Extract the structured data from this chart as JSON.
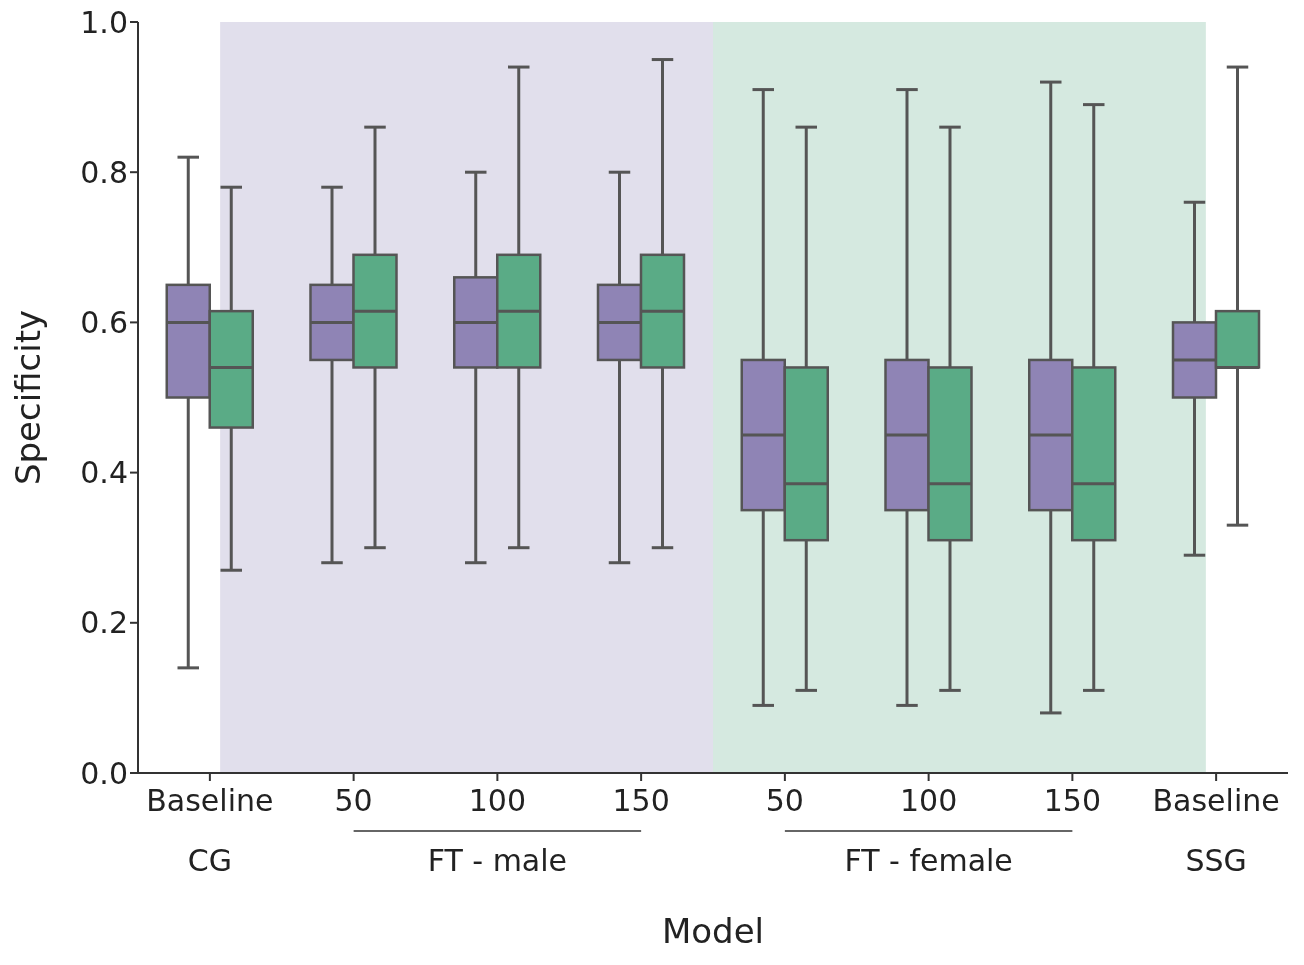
{
  "chart_data": {
    "type": "box",
    "xlabel": "Model",
    "ylabel": "Specificity",
    "categories": [
      "Baseline",
      "50",
      "100",
      "150",
      "50",
      "100",
      "150",
      "Baseline"
    ],
    "annotations": [
      "CG",
      "FT - male",
      "FT - female",
      "SSG"
    ],
    "series": [
      {
        "color": "#8f84b5",
        "boxes": [
          {
            "low": 0.14,
            "q1": 0.5,
            "median": 0.6,
            "q3": 0.65,
            "high": 0.82
          },
          {
            "low": 0.28,
            "q1": 0.55,
            "median": 0.6,
            "q3": 0.65,
            "high": 0.78
          },
          {
            "low": 0.28,
            "q1": 0.54,
            "median": 0.6,
            "q3": 0.66,
            "high": 0.8
          },
          {
            "low": 0.28,
            "q1": 0.55,
            "median": 0.6,
            "q3": 0.65,
            "high": 0.8
          },
          {
            "low": 0.09,
            "q1": 0.35,
            "median": 0.45,
            "q3": 0.55,
            "high": 0.91
          },
          {
            "low": 0.09,
            "q1": 0.35,
            "median": 0.45,
            "q3": 0.55,
            "high": 0.91
          },
          {
            "low": 0.08,
            "q1": 0.35,
            "median": 0.45,
            "q3": 0.55,
            "high": 0.92
          },
          {
            "low": 0.29,
            "q1": 0.5,
            "median": 0.55,
            "q3": 0.6,
            "high": 0.76
          }
        ]
      },
      {
        "color": "#5aab86",
        "boxes": [
          {
            "low": 0.27,
            "q1": 0.46,
            "median": 0.54,
            "q3": 0.615,
            "high": 0.78
          },
          {
            "low": 0.3,
            "q1": 0.54,
            "median": 0.615,
            "q3": 0.69,
            "high": 0.86
          },
          {
            "low": 0.3,
            "q1": 0.54,
            "median": 0.615,
            "q3": 0.69,
            "high": 0.94
          },
          {
            "low": 0.3,
            "q1": 0.54,
            "median": 0.615,
            "q3": 0.69,
            "high": 0.95
          },
          {
            "low": 0.11,
            "q1": 0.31,
            "median": 0.385,
            "q3": 0.54,
            "high": 0.86
          },
          {
            "low": 0.11,
            "q1": 0.31,
            "median": 0.385,
            "q3": 0.54,
            "high": 0.86
          },
          {
            "low": 0.11,
            "q1": 0.31,
            "median": 0.385,
            "q3": 0.54,
            "high": 0.89
          },
          {
            "low": 0.33,
            "q1": 0.54,
            "median": 0.54,
            "q3": 0.615,
            "high": 0.94
          }
        ]
      }
    ],
    "ylim": [
      0,
      1
    ],
    "yticks": [
      {
        "value": 0,
        "label": "0.0"
      },
      {
        "value": 0.2,
        "label": "0.2"
      },
      {
        "value": 0.4,
        "label": "0.4"
      },
      {
        "value": 0.6,
        "label": "0.6"
      },
      {
        "value": 0.8,
        "label": "0.8"
      },
      {
        "value": 1,
        "label": "1.0"
      }
    ],
    "grid": false,
    "legend": false
  }
}
